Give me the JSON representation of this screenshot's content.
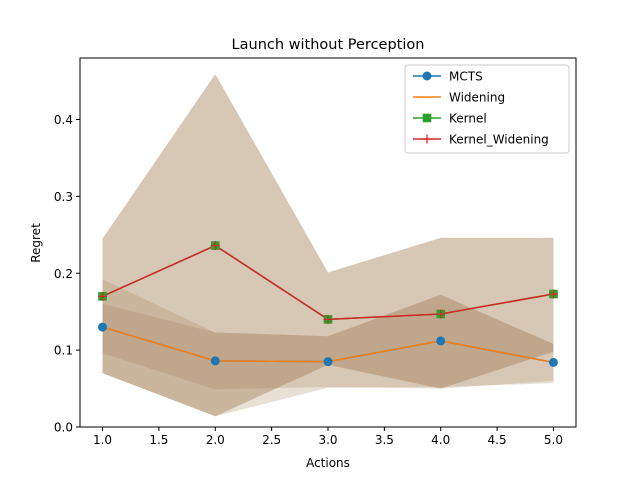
{
  "chart_data": {
    "type": "line",
    "title": "Launch without Perception",
    "xlabel": "Actions",
    "ylabel": "Regret",
    "xlim": [
      0.8,
      5.2
    ],
    "ylim": [
      0.0,
      0.48
    ],
    "xticks": [
      1.0,
      1.5,
      2.0,
      2.5,
      3.0,
      3.5,
      4.0,
      4.5,
      5.0
    ],
    "xtick_labels": [
      "1.0",
      "1.5",
      "2.0",
      "2.5",
      "3.0",
      "3.5",
      "4.0",
      "4.5",
      "5.0"
    ],
    "yticks": [
      0.0,
      0.1,
      0.2,
      0.3,
      0.4
    ],
    "ytick_labels": [
      "0.0",
      "0.1",
      "0.2",
      "0.3",
      "0.4"
    ],
    "grid": false,
    "legend_position": "top-right",
    "x": [
      1,
      2,
      3,
      4,
      5
    ],
    "series": [
      {
        "name": "MCTS",
        "values": [
          0.13,
          0.086,
          0.085,
          0.112,
          0.084
        ],
        "color": "#1f77b4",
        "marker": "circle",
        "band_lower": [
          0.07,
          0.014,
          0.051,
          0.052,
          0.057
        ],
        "band_upper": [
          0.192,
          0.123,
          0.118,
          0.172,
          0.108
        ]
      },
      {
        "name": "Widening",
        "values": [
          0.13,
          0.086,
          0.085,
          0.112,
          0.084
        ],
        "color": "#ff7f0e",
        "marker": "none",
        "band_lower": [
          0.096,
          0.049,
          0.052,
          0.05,
          0.06
        ],
        "band_upper": [
          0.16,
          0.123,
          0.118,
          0.172,
          0.108
        ]
      },
      {
        "name": "Kernel",
        "values": [
          0.17,
          0.236,
          0.14,
          0.147,
          0.173
        ],
        "color": "#2ca02c",
        "marker": "square",
        "band_lower": [
          0.07,
          0.014,
          0.081,
          0.05,
          0.098
        ],
        "band_upper": [
          0.245,
          0.459,
          0.201,
          0.246,
          0.246
        ]
      },
      {
        "name": "Kernel_Widening",
        "values": [
          0.17,
          0.236,
          0.14,
          0.147,
          0.173
        ],
        "color": "#d62728",
        "marker": "plus",
        "band_lower": [
          0.07,
          0.014,
          0.081,
          0.05,
          0.098
        ],
        "band_upper": [
          0.245,
          0.459,
          0.201,
          0.246,
          0.246
        ]
      }
    ],
    "band_color": "#a47e58"
  }
}
